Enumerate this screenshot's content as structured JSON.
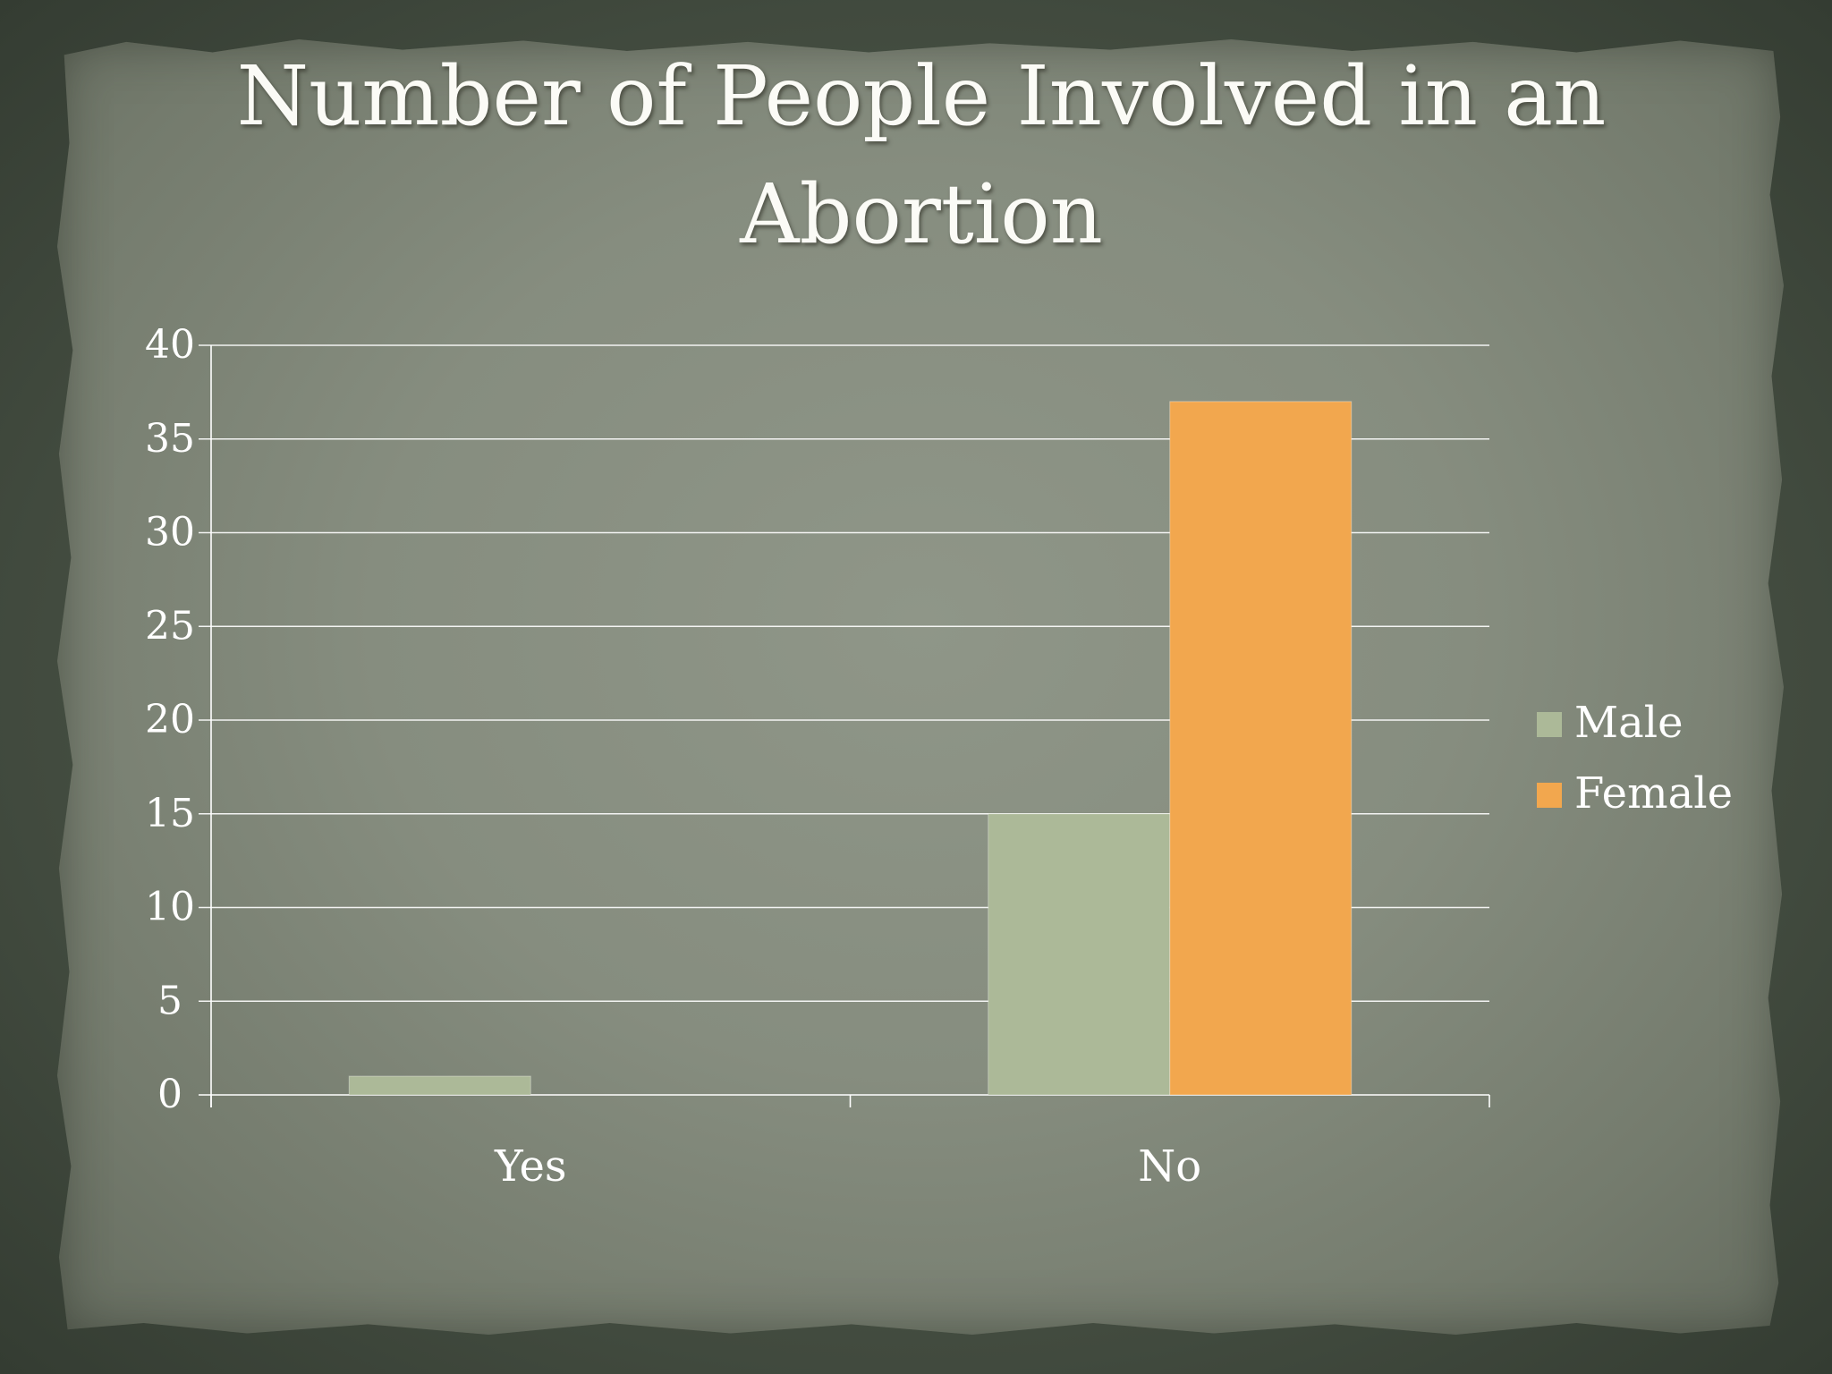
{
  "title": "Number of People Involved in an Abortion",
  "chart_data": {
    "type": "bar",
    "title": "Number of People Involved in an Abortion",
    "categories": [
      "Yes",
      "No"
    ],
    "series": [
      {
        "name": "Male",
        "values": [
          1,
          15
        ],
        "color": "#acb998"
      },
      {
        "name": "Female",
        "values": [
          0,
          37
        ],
        "color": "#f2a74e"
      }
    ],
    "xlabel": "",
    "ylabel": "",
    "ylim": [
      0,
      40
    ],
    "yticks": [
      0,
      5,
      10,
      15,
      20,
      25,
      30,
      35,
      40
    ],
    "grid": true,
    "legend_position": "right"
  }
}
